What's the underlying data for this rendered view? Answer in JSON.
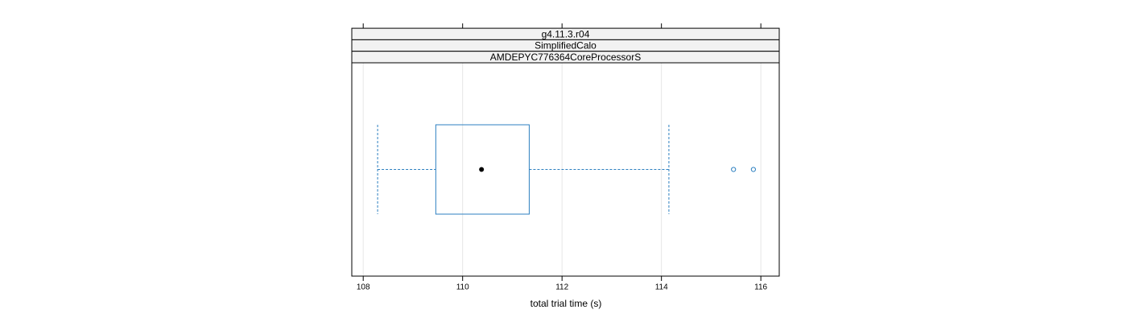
{
  "chart_data": {
    "type": "box",
    "strips": [
      "g4.11.3.r04",
      "SimplifiedCalo",
      "AMDEPYC776364CoreProcessorS"
    ],
    "xlabel": "total trial time (s)",
    "xlim": [
      107.77,
      116.37
    ],
    "xticks": [
      108,
      110,
      112,
      114,
      116
    ],
    "grid": true,
    "color": "#2c7fc0",
    "median_color": "#000000",
    "whisker_low": 108.29,
    "q1": 109.46,
    "median": 110.38,
    "q3": 111.34,
    "whisker_high": 114.15,
    "outliers": [
      115.45,
      115.85
    ]
  }
}
